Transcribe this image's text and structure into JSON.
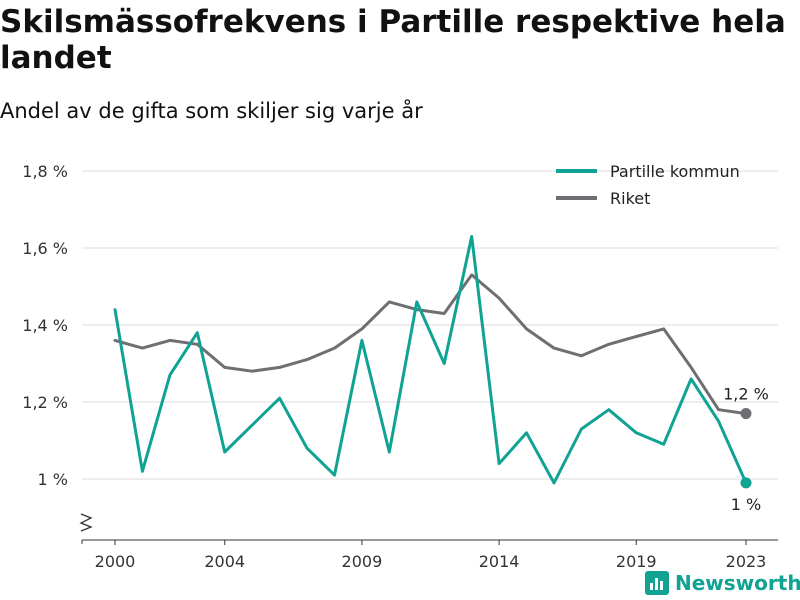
{
  "header": {
    "title": "Skilsmässofrekvens i Partille respektive hela landet",
    "subtitle": "Andel av de gifta som skiljer sig varje år"
  },
  "brand": {
    "name": "Newsworthy",
    "icon": "newsworthy-logo-icon",
    "color": "#10a394"
  },
  "chart_data": {
    "type": "line",
    "title": "Skilsmässofrekvens i Partille respektive hela landet",
    "subtitle": "Andel av de gifta som skiljer sig varje år",
    "xlabel": "",
    "ylabel": "",
    "x": [
      2000,
      2001,
      2002,
      2003,
      2004,
      2005,
      2006,
      2007,
      2008,
      2009,
      2010,
      2011,
      2012,
      2013,
      2014,
      2015,
      2016,
      2017,
      2018,
      2019,
      2020,
      2021,
      2022,
      2023
    ],
    "xticks": [
      "2000",
      "2004",
      "2009",
      "2014",
      "2019",
      "2023"
    ],
    "ylim": [
      0.85,
      1.85
    ],
    "yticks": [
      {
        "value": 1.0,
        "label": "1 %"
      },
      {
        "value": 1.2,
        "label": "1,2 %"
      },
      {
        "value": 1.4,
        "label": "1,4 %"
      },
      {
        "value": 1.6,
        "label": "1,6 %"
      },
      {
        "value": 1.8,
        "label": "1,8 %"
      }
    ],
    "axis_break": true,
    "grid": "horizontal",
    "legend_position": "top-right",
    "series": [
      {
        "name": "Partille kommun",
        "color": "#10a394",
        "values": [
          1.44,
          1.02,
          1.27,
          1.38,
          1.07,
          1.14,
          1.21,
          1.08,
          1.01,
          1.36,
          1.07,
          1.46,
          1.3,
          1.63,
          1.04,
          1.12,
          0.99,
          1.13,
          1.18,
          1.12,
          1.09,
          1.26,
          1.15,
          0.99
        ],
        "end_label": "1 %"
      },
      {
        "name": "Riket",
        "color": "#6f6e72",
        "values": [
          1.36,
          1.34,
          1.36,
          1.35,
          1.29,
          1.28,
          1.29,
          1.31,
          1.34,
          1.39,
          1.46,
          1.44,
          1.43,
          1.53,
          1.47,
          1.39,
          1.34,
          1.32,
          1.35,
          1.37,
          1.39,
          1.29,
          1.18,
          1.17
        ],
        "end_label": "1,2 %"
      }
    ]
  }
}
